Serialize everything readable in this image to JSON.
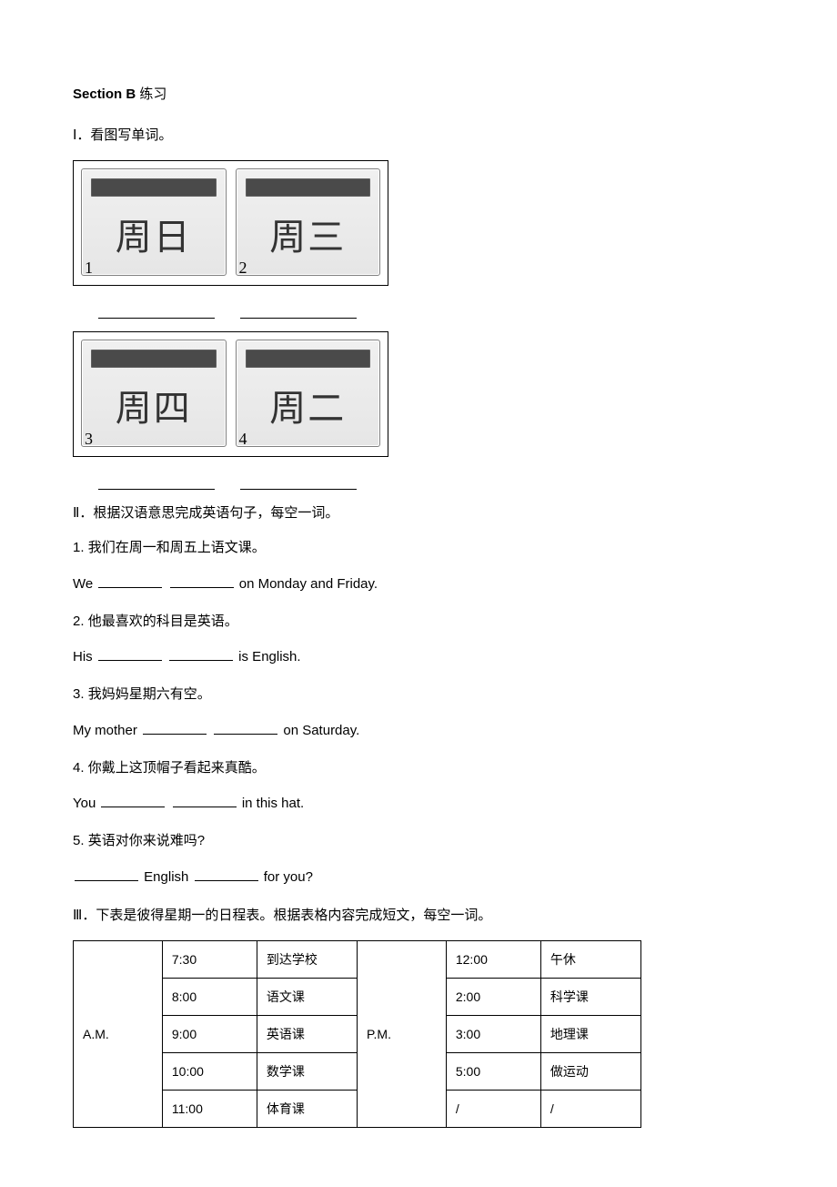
{
  "header": {
    "section_label_bold": "Section B",
    "section_label_rest": " 练习"
  },
  "part1": {
    "heading": "Ⅰ．看图写单词。",
    "cards": [
      {
        "num": "1",
        "text": "周日"
      },
      {
        "num": "2",
        "text": "周三"
      },
      {
        "num": "3",
        "text": "周四"
      },
      {
        "num": "4",
        "text": "周二"
      }
    ]
  },
  "part2": {
    "heading": "Ⅱ．根据汉语意思完成英语句子，每空一词。",
    "items": [
      {
        "num": "1.  ",
        "cn": "我们在周一和周五上语文课。",
        "en_pre": "We ",
        "en_post": " on Monday and Friday."
      },
      {
        "num": "2.  ",
        "cn": "他最喜欢的科目是英语。",
        "en_pre": "His ",
        "en_post": " is English."
      },
      {
        "num": "3.  ",
        "cn": "我妈妈星期六有空。",
        "en_pre": "My mother ",
        "en_post": " on Saturday."
      },
      {
        "num": "4.  ",
        "cn": "你戴上这顶帽子看起来真酷。",
        "en_pre": "You ",
        "en_post": " in this hat."
      },
      {
        "num": "5.  ",
        "cn": "英语对你来说难吗?",
        "en_pre": "",
        "en_mid": " English ",
        "en_post": " for you?"
      }
    ]
  },
  "part3": {
    "heading": "Ⅲ．下表是彼得星期一的日程表。根据表格内容完成短文，每空一词。",
    "table": {
      "am_label": "A.M.",
      "pm_label": "P.M.",
      "am_rows": [
        {
          "time": "7:30",
          "act": "到达学校"
        },
        {
          "time": "8:00",
          "act": "语文课"
        },
        {
          "time": "9:00",
          "act": "英语课"
        },
        {
          "time": "10:00",
          "act": "数学课"
        },
        {
          "time": "11:00",
          "act": "体育课"
        }
      ],
      "pm_rows": [
        {
          "time": "12:00",
          "act": "午休"
        },
        {
          "time": "2:00",
          "act": "科学课"
        },
        {
          "time": "3:00",
          "act": "地理课"
        },
        {
          "time": "5:00",
          "act": "做运动"
        },
        {
          "time": "/",
          "act": "/"
        }
      ]
    }
  }
}
